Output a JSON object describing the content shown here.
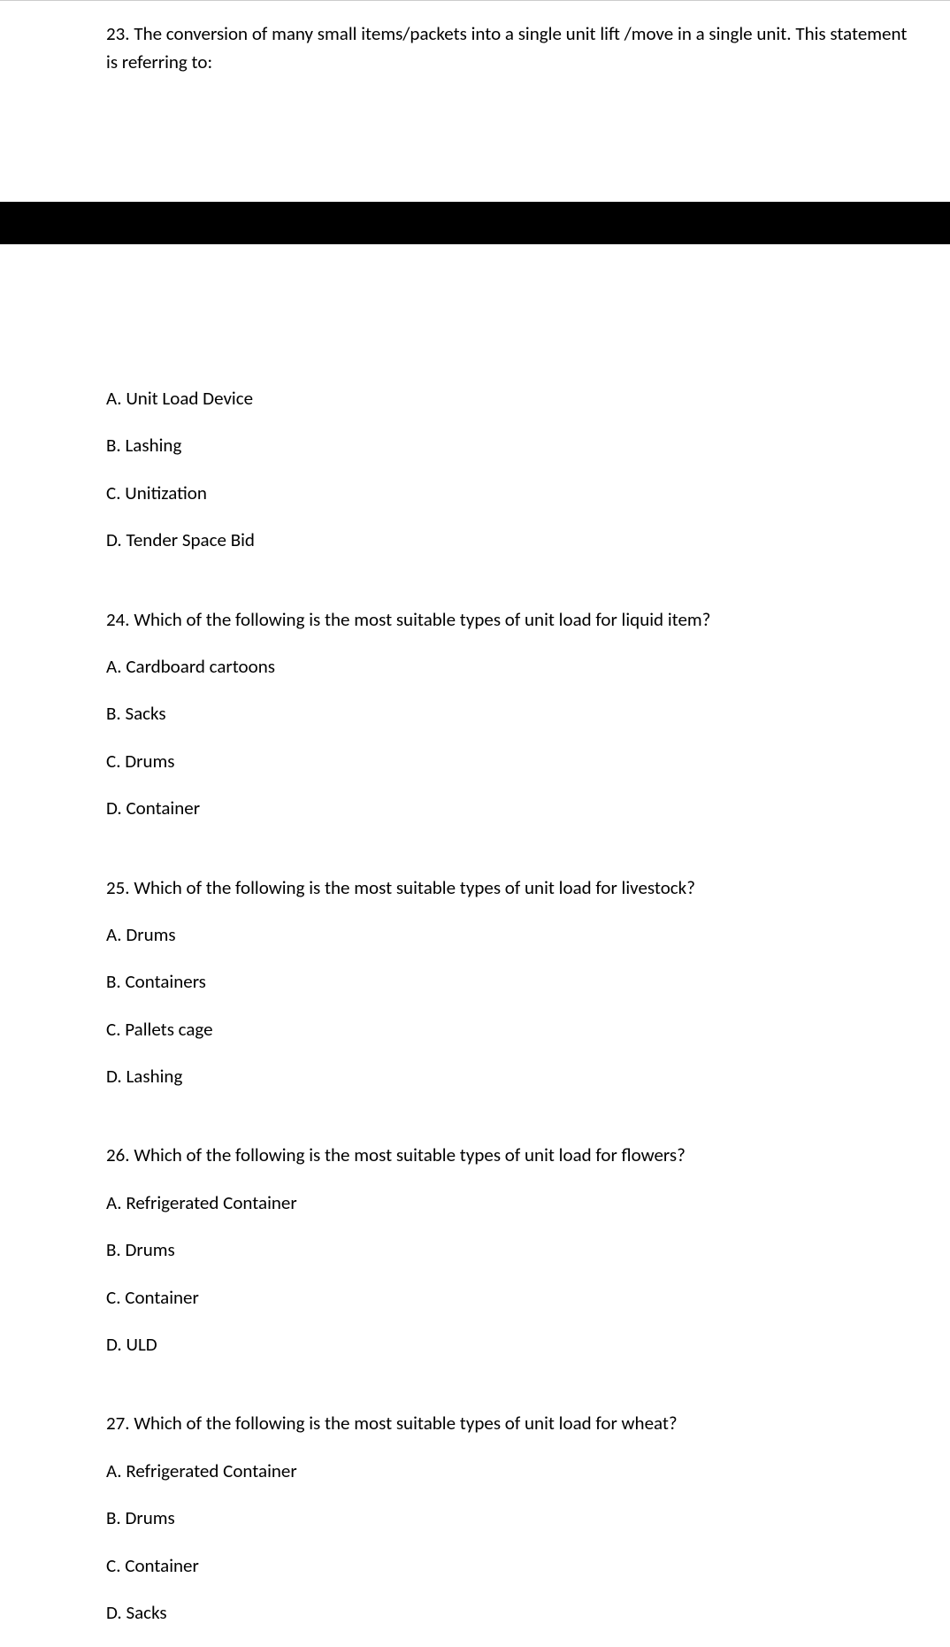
{
  "q23": {
    "text": "23. The conversion of many small items/packets into a single unit lift /move in a single unit. This statement is referring to:",
    "options": {
      "a": "A. Unit Load Device",
      "b": "B. Lashing",
      "c": "C. Unitization",
      "d": "D. Tender Space Bid"
    }
  },
  "q24": {
    "text": "24. Which of the following is the most suitable types of unit load for liquid item?",
    "options": {
      "a": "A. Cardboard cartoons",
      "b": "B. Sacks",
      "c": "C. Drums",
      "d": "D. Container"
    }
  },
  "q25": {
    "text": "25. Which of the following is the most suitable types of unit load for livestock?",
    "options": {
      "a": "A. Drums",
      "b": "B. Containers",
      "c": "C. Pallets cage",
      "d": "D. Lashing"
    }
  },
  "q26": {
    "text": "26. Which of the following is the most suitable types of unit load for flowers?",
    "options": {
      "a": "A. Refrigerated Container",
      "b": "B. Drums",
      "c": "C. Container",
      "d": "D. ULD"
    }
  },
  "q27": {
    "text": "27. Which of the following is the most suitable types of unit load for wheat?",
    "options": {
      "a": "A. Refrigerated Container",
      "b": "B. Drums",
      "c": "C. Container",
      "d": "D. Sacks"
    }
  }
}
